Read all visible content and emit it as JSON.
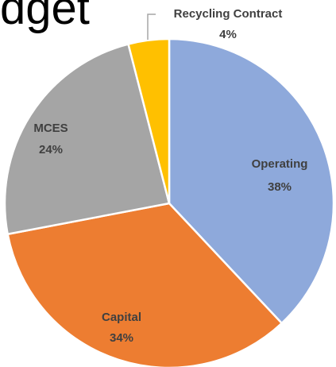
{
  "title_fragment": "dget",
  "chart_data": {
    "type": "pie",
    "start_angle_deg": 0,
    "direction": "clockwise",
    "slices": [
      {
        "label": "Operating",
        "value": 38,
        "value_label": "38%",
        "color": "#8EA9DB"
      },
      {
        "label": "Capital",
        "value": 34,
        "value_label": "34%",
        "color": "#ED7D31"
      },
      {
        "label": "MCES",
        "value": 24,
        "value_label": "24%",
        "color": "#A5A5A5"
      },
      {
        "label": "Recycling Contract",
        "value": 4,
        "value_label": "4%",
        "color": "#FFC000"
      }
    ],
    "slice_border_color": "#FFFFFF",
    "label_color": "#404040",
    "leader_line_color": "#A5A5A5"
  }
}
